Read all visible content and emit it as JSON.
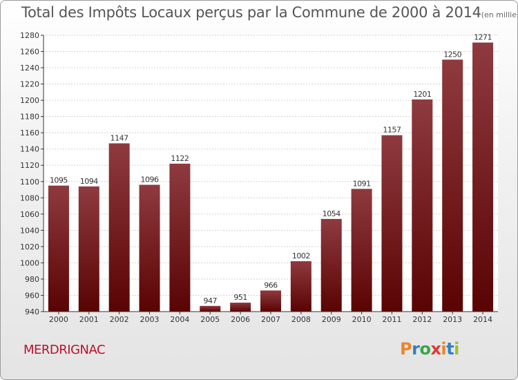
{
  "header": {
    "title": "Total des Impôts Locaux perçus par la Commune de 2000 à 2014",
    "unit": "(en milliers d'€)"
  },
  "footer": {
    "commune": "MERDRIGNAC",
    "logo_letters": [
      "P",
      "r",
      "o",
      "x",
      "i",
      "t",
      "i"
    ],
    "logo_colors": [
      "#e8862b",
      "#2f7fc4",
      "#3aa54b",
      "#e03a2f",
      "#e8862b",
      "#2f7fc4",
      "#9bbf2a"
    ]
  },
  "colors": {
    "bar_top": "#8e3a3f",
    "bar_bottom": "#5a0303",
    "grid": "#d0d0d0",
    "axis": "#333333",
    "commune": "#b9122c"
  },
  "chart_data": {
    "type": "bar",
    "title": "Total des Impôts Locaux perçus par la Commune de 2000 à 2014",
    "xlabel": "",
    "ylabel": "",
    "categories": [
      "2000",
      "2001",
      "2002",
      "2003",
      "2004",
      "2005",
      "2006",
      "2007",
      "2008",
      "2009",
      "2010",
      "2011",
      "2012",
      "2013",
      "2014"
    ],
    "values": [
      1095,
      1094,
      1147,
      1096,
      1122,
      947,
      951,
      966,
      1002,
      1054,
      1091,
      1157,
      1201,
      1250,
      1271
    ],
    "ylim": [
      940,
      1280
    ],
    "yticks": [
      940,
      960,
      980,
      1000,
      1020,
      1040,
      1060,
      1080,
      1100,
      1120,
      1140,
      1160,
      1180,
      1200,
      1220,
      1240,
      1260,
      1280
    ],
    "grid": true,
    "data_labels": true
  }
}
